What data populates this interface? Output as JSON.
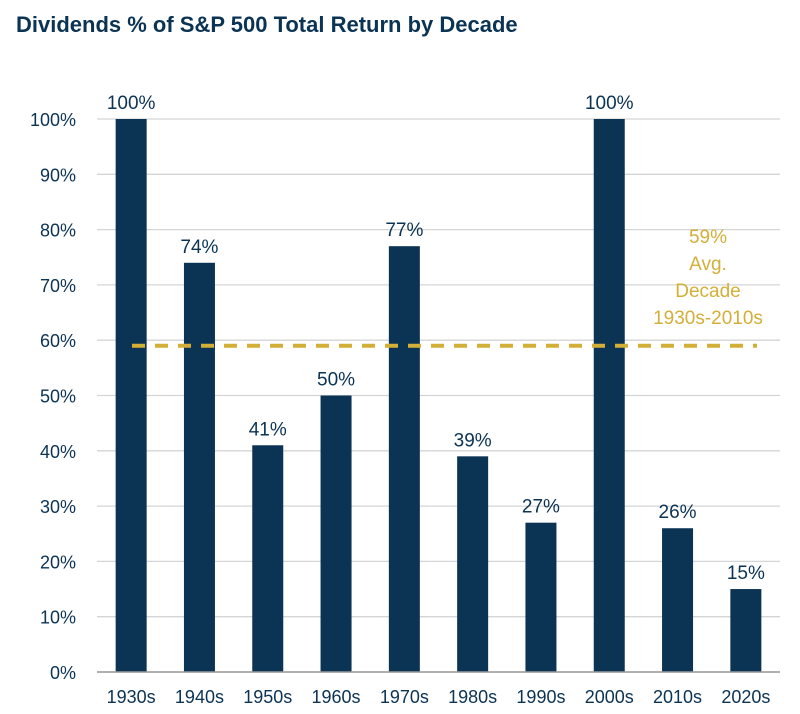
{
  "chart_data": {
    "type": "bar",
    "title": "Dividends % of S&P 500 Total Return by Decade",
    "categories": [
      "1930s",
      "1940s",
      "1950s",
      "1960s",
      "1970s",
      "1980s",
      "1990s",
      "2000s",
      "2010s",
      "2020s"
    ],
    "values": [
      100,
      74,
      41,
      50,
      77,
      39,
      27,
      100,
      26,
      15
    ],
    "data_labels": [
      "100%",
      "74%",
      "41%",
      "50%",
      "77%",
      "39%",
      "27%",
      "100%",
      "26%",
      "15%"
    ],
    "ylim": [
      0,
      100
    ],
    "yticks": [
      0,
      10,
      20,
      30,
      40,
      50,
      60,
      70,
      80,
      90,
      100
    ],
    "ytick_labels": [
      "0%",
      "10%",
      "20%",
      "30%",
      "40%",
      "50%",
      "60%",
      "70%",
      "80%",
      "90%",
      "100%"
    ],
    "xlabel": "",
    "ylabel": "",
    "grid": true,
    "reference_line": {
      "value": 59,
      "style": "dashed",
      "label_lines": [
        "59%",
        "Avg.",
        "Decade",
        "1930s-2010s"
      ]
    },
    "colors": {
      "bar": "#0b3354",
      "average_line": "#d4af37",
      "grid": "#d5d5d5",
      "text": "#0b3354"
    }
  }
}
